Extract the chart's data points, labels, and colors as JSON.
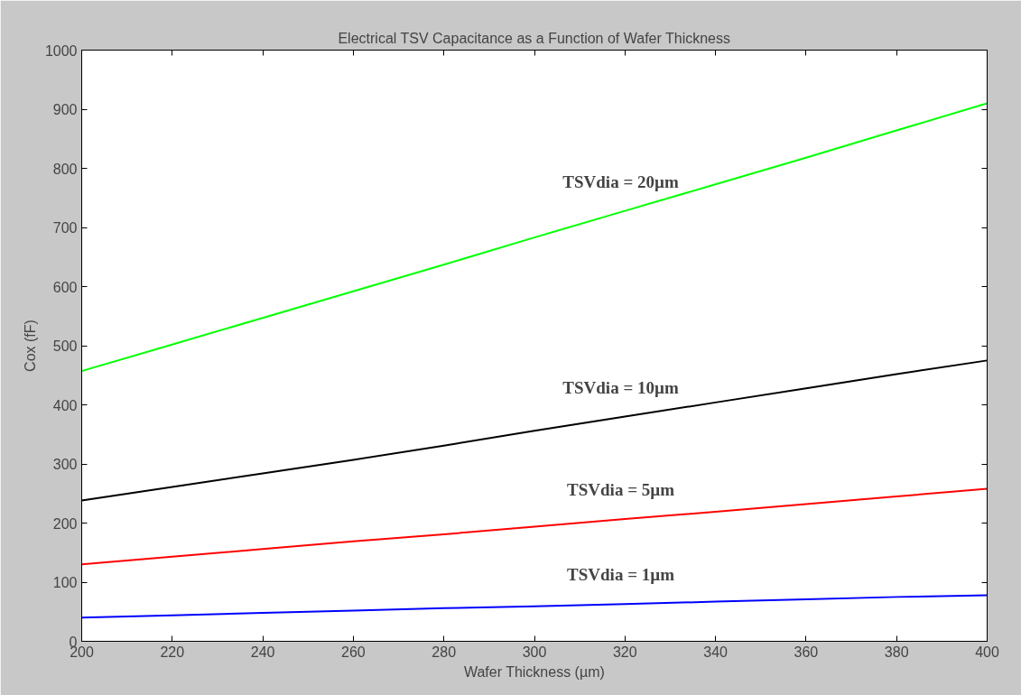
{
  "chart_data": {
    "type": "line",
    "title": "Electrical TSV Capacitance as a Function of Wafer Thickness",
    "xlabel": "Wafer Thickness (µm)",
    "ylabel": "Cox (fF)",
    "x": [
      200,
      220,
      240,
      260,
      280,
      300,
      320,
      340,
      360,
      380,
      400
    ],
    "series": [
      {
        "name": "TSVdia  =  20µm",
        "color": "#00ff00",
        "values": [
          457,
          502,
          547,
          592,
          637,
          683,
          728,
          773,
          818,
          864,
          910
        ]
      },
      {
        "name": "TSVdia  =  10µm",
        "color": "#000000",
        "values": [
          238,
          261,
          284,
          307,
          331,
          356,
          380,
          404,
          428,
          452,
          475
        ]
      },
      {
        "name": "TSVdia  =  5µm",
        "color": "#ff0000",
        "values": [
          130,
          143,
          156,
          169,
          181,
          194,
          207,
          219,
          232,
          245,
          258
        ]
      },
      {
        "name": "TSVdia  =  1µm",
        "color": "#0000ff",
        "values": [
          40,
          44,
          48,
          52,
          56,
          59,
          63,
          67,
          71,
          75,
          78
        ]
      }
    ],
    "xlim": [
      200,
      400
    ],
    "ylim": [
      0,
      1000
    ],
    "xticks": [
      200,
      220,
      240,
      260,
      280,
      300,
      320,
      340,
      360,
      380,
      400
    ],
    "yticks": [
      0,
      100,
      200,
      300,
      400,
      500,
      600,
      700,
      800,
      900,
      1000
    ],
    "grid": false,
    "marker": "none",
    "line_style": "solid"
  }
}
